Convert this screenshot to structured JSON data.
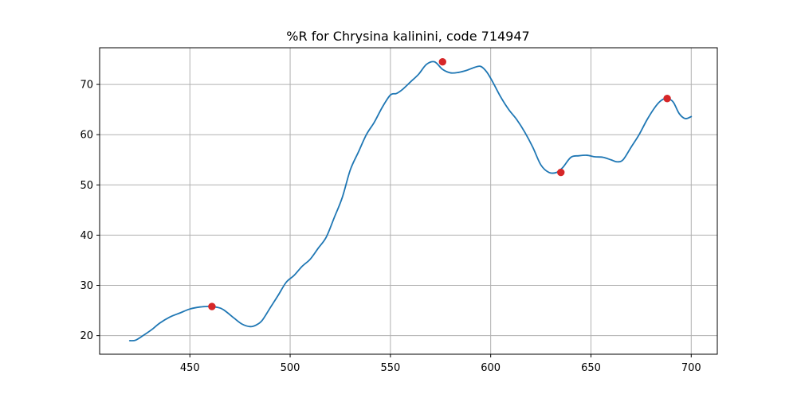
{
  "chart_data": {
    "type": "line",
    "title": "%R for Chrysina kalinini, code 714947",
    "xlabel": "",
    "ylabel": "",
    "xlim": [
      405,
      713
    ],
    "ylim": [
      16.3,
      77.3
    ],
    "x_ticks": [
      450,
      500,
      550,
      600,
      650,
      700
    ],
    "y_ticks": [
      20,
      30,
      40,
      50,
      60,
      70
    ],
    "x_tick_labels": [
      "450",
      "500",
      "550",
      "600",
      "650",
      "700"
    ],
    "y_tick_labels": [
      "20",
      "30",
      "40",
      "50",
      "60",
      "70"
    ],
    "grid": true,
    "series": [
      {
        "color": "#1f77b4",
        "x": [
          420,
          423,
          427,
          431,
          435,
          440,
          445,
          450,
          455,
          460,
          465,
          468,
          472,
          476,
          480,
          483,
          486,
          490,
          494,
          498,
          502,
          506,
          510,
          514,
          518,
          522,
          526,
          530,
          534,
          538,
          542,
          546,
          550,
          553,
          556,
          560,
          564,
          568,
          572,
          576,
          580,
          584,
          588,
          592,
          595,
          598,
          601,
          605,
          609,
          613,
          617,
          621,
          625,
          629,
          633,
          636,
          640,
          644,
          648,
          652,
          656,
          660,
          663,
          666,
          670,
          674,
          678,
          682,
          685,
          688,
          691,
          694,
          697,
          700
        ],
        "y": [
          19.0,
          19.1,
          20.1,
          21.2,
          22.5,
          23.7,
          24.5,
          25.3,
          25.7,
          25.8,
          25.5,
          24.8,
          23.5,
          22.3,
          21.8,
          22.1,
          23.0,
          25.5,
          28.0,
          30.6,
          32.0,
          33.8,
          35.2,
          37.4,
          39.6,
          43.5,
          47.5,
          53.0,
          56.5,
          60.0,
          62.5,
          65.5,
          67.9,
          68.2,
          69.0,
          70.5,
          72.0,
          74.0,
          74.5,
          73.0,
          72.3,
          72.4,
          72.8,
          73.4,
          73.6,
          72.5,
          70.5,
          67.5,
          65.0,
          63.0,
          60.5,
          57.5,
          54.0,
          52.5,
          52.5,
          53.5,
          55.5,
          55.8,
          55.9,
          55.6,
          55.5,
          55.0,
          54.6,
          55.0,
          57.5,
          60.0,
          63.0,
          65.5,
          66.8,
          67.2,
          66.5,
          64.2,
          63.2,
          63.6
        ]
      }
    ],
    "markers": {
      "color": "#d62728",
      "x": [
        461,
        576,
        635,
        688
      ],
      "y": [
        25.8,
        74.5,
        52.5,
        67.2
      ]
    }
  }
}
